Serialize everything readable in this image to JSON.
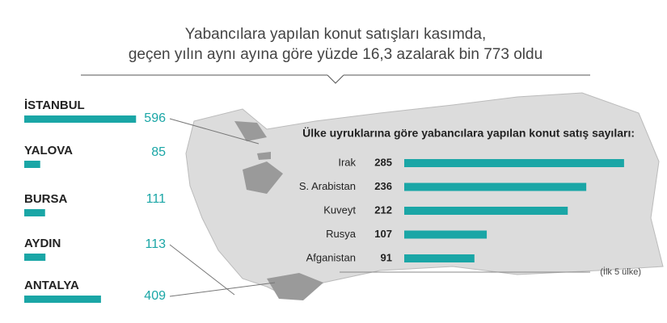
{
  "headline": [
    "Yabancılara yapılan konut satışları kasımda,",
    "geçen yılın aynı ayına göre yüzde 16,3 azalarak bin 773 oldu"
  ],
  "chart_data": [
    {
      "type": "hbar",
      "categories": [
        "İSTANBUL",
        "YALOVA",
        "BURSA",
        "AYDIN",
        "ANTALYA"
      ],
      "values": [
        596,
        85,
        111,
        113,
        409
      ],
      "color": "#1aa6a6"
    },
    {
      "type": "hbar",
      "title": "Ülke uyruklarına göre yabancılara yapılan konut satış sayıları:",
      "categories": [
        "Irak",
        "S. Arabistan",
        "Kuveyt",
        "Rusya",
        "Afganistan"
      ],
      "values": [
        285,
        236,
        212,
        107,
        91
      ],
      "color": "#1aa6a6",
      "note": "(İlk 5 ülke)"
    }
  ]
}
